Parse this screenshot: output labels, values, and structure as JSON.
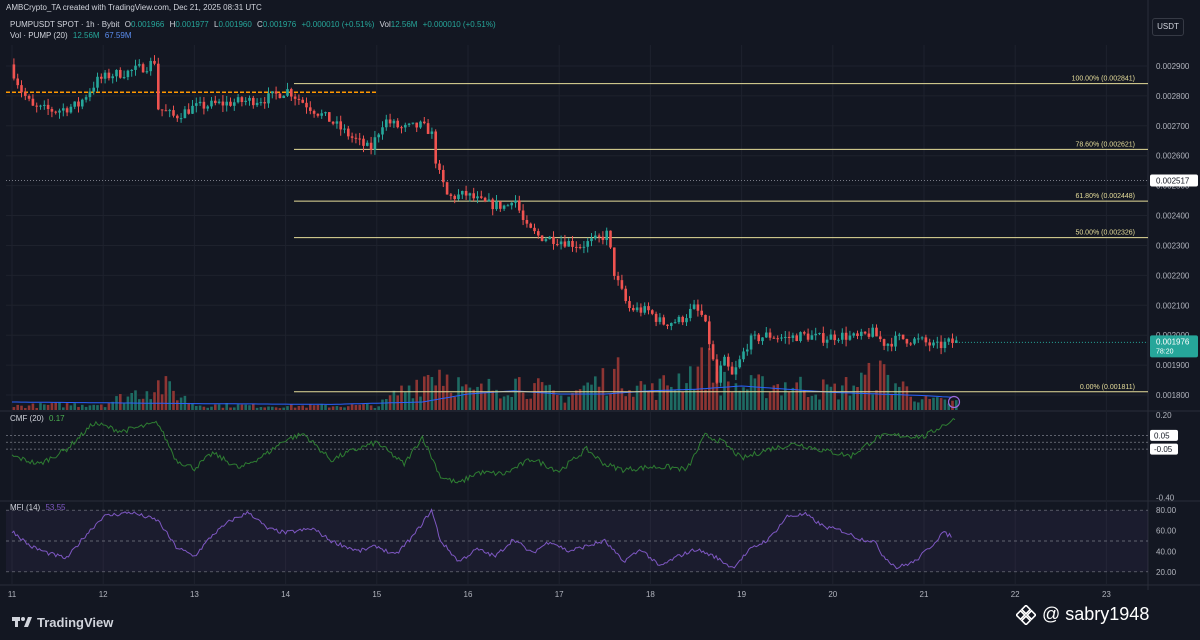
{
  "header": {
    "creator_line": "AMBCrypto_TA created with TradingView.com, Dec 21, 2025 08:31 UTC"
  },
  "legend": {
    "symbol": "PUMPUSDT SPOT · 1h · Bybit",
    "o_label": "O",
    "o_value": "0.001966",
    "h_label": "H",
    "h_value": "0.001977",
    "l_label": "L",
    "l_value": "0.001960",
    "c_label": "C",
    "c_value": "0.001976",
    "change": "+0.000010 (+0.51%)",
    "vol_label": "Vol",
    "vol_value": "12.56M",
    "vol_change": "+0.000010 (+0.51%)",
    "volume_name": "Vol · PUMP (20)",
    "volume_value": "12.56M",
    "volume_ma": "67.59M",
    "cmf_name": "CMF (20)",
    "cmf_value": "0.17",
    "mfi_name": "MFI (14)",
    "mfi_value": "53.55"
  },
  "currency_button": "USDT",
  "branding": {
    "logo_text": "TradingView",
    "watermark": "@ sabry1948"
  },
  "colors": {
    "background": "#131722",
    "up": "#26a69a",
    "down": "#ef5350",
    "fib": "#e6dd9a",
    "orange_level": "#ff9800",
    "cmf_line": "#4caf50",
    "mfi_line": "#7e57c2",
    "volume_ma": "#2962ff"
  },
  "chart_data": [
    {
      "type": "candlestick",
      "title": "PUMPUSDT SPOT · 1h · Bybit",
      "x_ticks": [
        "11",
        "12",
        "13",
        "14",
        "15",
        "16",
        "17",
        "18",
        "19",
        "20",
        "21",
        "22",
        "23"
      ],
      "y_ticks": [
        "0.002900",
        "0.002800",
        "0.002700",
        "0.002600",
        "0.002500",
        "0.002400",
        "0.002300",
        "0.002200",
        "0.002100",
        "0.002000",
        "0.001900",
        "0.001800"
      ],
      "ylim": [
        0.00175,
        0.00297
      ],
      "price_marker": "0.002517",
      "current_price": "0.001976",
      "countdown": "78:20",
      "fib_levels": [
        {
          "label": "100.00% (0.002841)",
          "value": 0.002841
        },
        {
          "label": "78.60% (0.002621)",
          "value": 0.002621
        },
        {
          "label": "61.80% (0.002448)",
          "value": 0.002448
        },
        {
          "label": "50.00% (0.002326)",
          "value": 0.002326
        },
        {
          "label": "0.00% (0.001811)",
          "value": 0.001811
        }
      ],
      "orange_level": 0.002812,
      "close_path": [
        [
          11.0,
          0.002905
        ],
        [
          11.12,
          0.00282
        ],
        [
          11.25,
          0.00276
        ],
        [
          11.5,
          0.00275
        ],
        [
          11.75,
          0.00277
        ],
        [
          11.95,
          0.00285
        ],
        [
          12.1,
          0.00287
        ],
        [
          12.3,
          0.00288
        ],
        [
          12.5,
          0.0029
        ],
        [
          12.6,
          0.00292
        ],
        [
          12.62,
          0.00276
        ],
        [
          12.8,
          0.00273
        ],
        [
          13.0,
          0.00276
        ],
        [
          13.2,
          0.00277
        ],
        [
          13.5,
          0.00278
        ],
        [
          13.8,
          0.00279
        ],
        [
          14.05,
          0.00282
        ],
        [
          14.12,
          0.0028
        ],
        [
          14.3,
          0.00276
        ],
        [
          14.5,
          0.00272
        ],
        [
          14.75,
          0.00266
        ],
        [
          14.95,
          0.00262
        ],
        [
          15.1,
          0.00272
        ],
        [
          15.3,
          0.00269
        ],
        [
          15.5,
          0.0027
        ],
        [
          15.62,
          0.00268
        ],
        [
          15.68,
          0.00256
        ],
        [
          15.8,
          0.00246
        ],
        [
          16.0,
          0.00247
        ],
        [
          16.2,
          0.00244
        ],
        [
          16.45,
          0.00243
        ],
        [
          16.52,
          0.00247
        ],
        [
          16.65,
          0.00236
        ],
        [
          16.8,
          0.00233
        ],
        [
          17.0,
          0.00232
        ],
        [
          17.25,
          0.0023
        ],
        [
          17.45,
          0.00232
        ],
        [
          17.55,
          0.00234
        ],
        [
          17.63,
          0.0022
        ],
        [
          17.78,
          0.00209
        ],
        [
          18.0,
          0.00208
        ],
        [
          18.15,
          0.00204
        ],
        [
          18.35,
          0.00205
        ],
        [
          18.5,
          0.00209
        ],
        [
          18.6,
          0.00206
        ],
        [
          18.68,
          0.00196
        ],
        [
          18.75,
          0.00184
        ],
        [
          18.82,
          0.00192
        ],
        [
          18.92,
          0.00186
        ],
        [
          19.1,
          0.00198
        ],
        [
          19.3,
          0.002
        ],
        [
          19.5,
          0.00199
        ],
        [
          19.7,
          0.002
        ],
        [
          19.9,
          0.00199
        ],
        [
          20.1,
          0.002
        ],
        [
          20.3,
          0.00199
        ],
        [
          20.45,
          0.00201
        ],
        [
          20.6,
          0.00197
        ],
        [
          20.75,
          0.00199
        ],
        [
          21.0,
          0.00198
        ],
        [
          21.15,
          0.00196
        ],
        [
          21.3,
          0.001976
        ]
      ],
      "volume_path": [
        [
          11,
          0.06
        ],
        [
          12,
          0.1
        ],
        [
          12.6,
          0.4
        ],
        [
          13,
          0.08
        ],
        [
          14,
          0.06
        ],
        [
          15,
          0.07
        ],
        [
          15.65,
          0.65
        ],
        [
          16,
          0.25
        ],
        [
          16.5,
          0.45
        ],
        [
          17,
          0.2
        ],
        [
          17.6,
          0.55
        ],
        [
          18,
          0.3
        ],
        [
          18.6,
          0.7
        ],
        [
          18.8,
          0.4
        ],
        [
          19,
          0.35
        ],
        [
          19.5,
          0.4
        ],
        [
          20,
          0.3
        ],
        [
          20.5,
          0.55
        ],
        [
          21,
          0.15
        ],
        [
          21.3,
          0.12
        ]
      ],
      "volume_ma_path": [
        [
          11,
          0.1
        ],
        [
          13,
          0.08
        ],
        [
          14.5,
          0.07
        ],
        [
          15.5,
          0.1
        ],
        [
          16,
          0.2
        ],
        [
          16.5,
          0.24
        ],
        [
          17,
          0.2
        ],
        [
          17.5,
          0.2
        ],
        [
          18,
          0.24
        ],
        [
          18.5,
          0.26
        ],
        [
          19,
          0.3
        ],
        [
          19.5,
          0.26
        ],
        [
          20,
          0.22
        ],
        [
          20.5,
          0.2
        ],
        [
          21,
          0.18
        ],
        [
          21.3,
          0.16
        ]
      ]
    },
    {
      "type": "line",
      "title": "CMF (20)",
      "series": [
        {
          "name": "CMF (20)",
          "values": [
            [
              11.0,
              -0.1
            ],
            [
              11.3,
              -0.16
            ],
            [
              11.6,
              -0.05
            ],
            [
              11.9,
              0.14
            ],
            [
              12.2,
              0.08
            ],
            [
              12.6,
              0.14
            ],
            [
              12.8,
              -0.13
            ],
            [
              13.0,
              -0.19
            ],
            [
              13.2,
              -0.08
            ],
            [
              13.5,
              -0.19
            ],
            [
              13.8,
              -0.08
            ],
            [
              14.0,
              0.02
            ],
            [
              14.2,
              0.06
            ],
            [
              14.5,
              -0.13
            ],
            [
              14.7,
              -0.07
            ],
            [
              15.0,
              0.0
            ],
            [
              15.3,
              -0.16
            ],
            [
              15.5,
              0.04
            ],
            [
              15.7,
              -0.25
            ],
            [
              15.9,
              -0.3
            ],
            [
              16.1,
              -0.22
            ],
            [
              16.4,
              -0.23
            ],
            [
              16.7,
              -0.12
            ],
            [
              17.0,
              -0.21
            ],
            [
              17.3,
              -0.05
            ],
            [
              17.5,
              -0.16
            ],
            [
              17.7,
              -0.2
            ],
            [
              18.0,
              -0.18
            ],
            [
              18.2,
              -0.18
            ],
            [
              18.4,
              -0.2
            ],
            [
              18.6,
              0.05
            ],
            [
              18.8,
              0.0
            ],
            [
              19.0,
              -0.12
            ],
            [
              19.3,
              -0.05
            ],
            [
              19.6,
              -0.01
            ],
            [
              19.9,
              -0.06
            ],
            [
              20.2,
              -0.1
            ],
            [
              20.5,
              0.04
            ],
            [
              20.7,
              0.05
            ],
            [
              21.0,
              0.04
            ],
            [
              21.2,
              0.12
            ],
            [
              21.35,
              0.17
            ]
          ]
        }
      ],
      "y_ticks": [
        "0.20",
        "-0.40"
      ],
      "ylim": [
        -0.42,
        0.22
      ],
      "level_labels": [
        "0.05",
        "-0.05"
      ],
      "levels": [
        0.05,
        0.0,
        -0.05
      ]
    },
    {
      "type": "line",
      "title": "MFI (14)",
      "series": [
        {
          "name": "MFI (14)",
          "values": [
            [
              11.0,
              60
            ],
            [
              11.2,
              45
            ],
            [
              11.4,
              38
            ],
            [
              11.6,
              33
            ],
            [
              11.8,
              55
            ],
            [
              12.0,
              74
            ],
            [
              12.3,
              78
            ],
            [
              12.6,
              70
            ],
            [
              12.8,
              44
            ],
            [
              13.0,
              35
            ],
            [
              13.2,
              56
            ],
            [
              13.4,
              70
            ],
            [
              13.6,
              78
            ],
            [
              13.8,
              62
            ],
            [
              14.0,
              58
            ],
            [
              14.3,
              62
            ],
            [
              14.5,
              50
            ],
            [
              14.8,
              40
            ],
            [
              15.0,
              45
            ],
            [
              15.2,
              36
            ],
            [
              15.4,
              55
            ],
            [
              15.6,
              80
            ],
            [
              15.7,
              50
            ],
            [
              15.9,
              30
            ],
            [
              16.1,
              42
            ],
            [
              16.3,
              35
            ],
            [
              16.5,
              52
            ],
            [
              16.7,
              38
            ],
            [
              16.9,
              50
            ],
            [
              17.1,
              40
            ],
            [
              17.3,
              45
            ],
            [
              17.5,
              50
            ],
            [
              17.7,
              30
            ],
            [
              17.9,
              42
            ],
            [
              18.1,
              25
            ],
            [
              18.3,
              35
            ],
            [
              18.5,
              42
            ],
            [
              18.7,
              35
            ],
            [
              18.9,
              24
            ],
            [
              19.1,
              42
            ],
            [
              19.3,
              52
            ],
            [
              19.5,
              74
            ],
            [
              19.7,
              76
            ],
            [
              19.9,
              64
            ],
            [
              20.1,
              60
            ],
            [
              20.3,
              52
            ],
            [
              20.45,
              50
            ],
            [
              20.55,
              36
            ],
            [
              20.7,
              24
            ],
            [
              20.9,
              30
            ],
            [
              21.1,
              47
            ],
            [
              21.2,
              58
            ],
            [
              21.3,
              55
            ]
          ]
        }
      ],
      "y_ticks": [
        "80.00",
        "60.00",
        "40.00",
        "20.00"
      ],
      "ylim": [
        12,
        88
      ],
      "levels": [
        80,
        50,
        20
      ]
    }
  ]
}
